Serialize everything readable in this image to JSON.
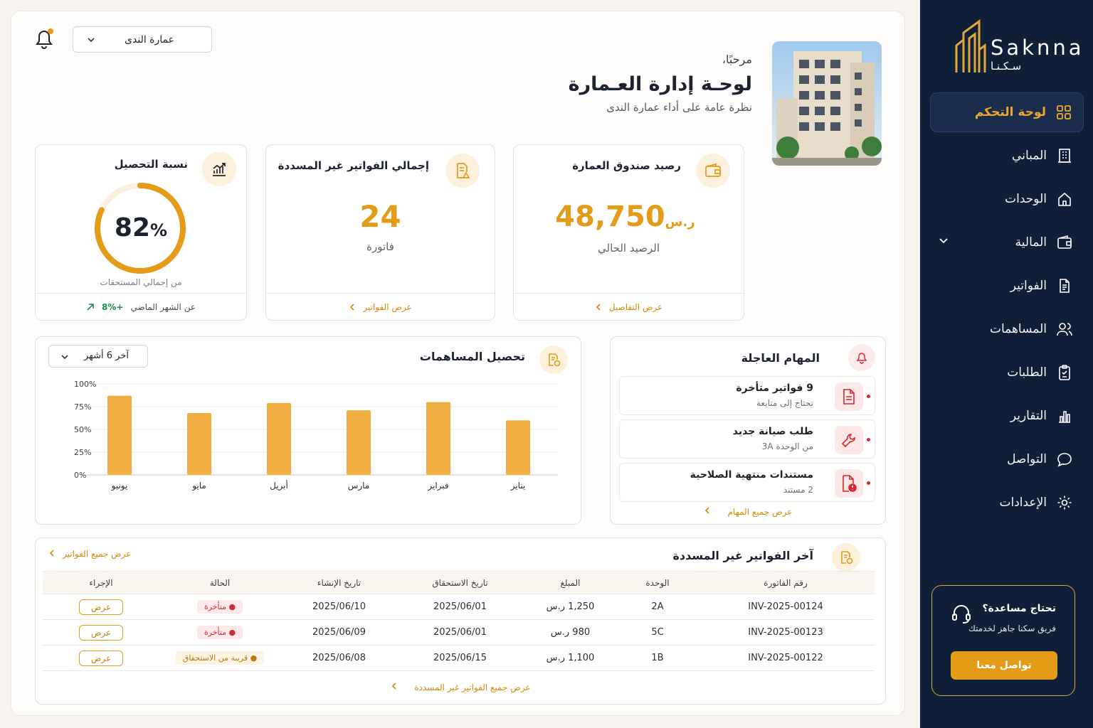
{
  "brand": {
    "latin": "Saknna",
    "arabic": "سـكـنـا"
  },
  "nav": [
    {
      "label": "لوحة التحكم",
      "icon": "grid-icon",
      "active": true
    },
    {
      "label": "المباني",
      "icon": "building-icon"
    },
    {
      "label": "الوحدات",
      "icon": "home-icon"
    },
    {
      "label": "المالية",
      "icon": "wallet-icon",
      "expandable": true
    },
    {
      "label": "الفواتير",
      "icon": "document-icon"
    },
    {
      "label": "المساهمات",
      "icon": "users-icon"
    },
    {
      "label": "الطلبات",
      "icon": "clipboard-icon"
    },
    {
      "label": "التقارير",
      "icon": "bar-chart-icon"
    },
    {
      "label": "التواصل",
      "icon": "chat-icon"
    },
    {
      "label": "الإعدادات",
      "icon": "gear-icon"
    }
  ],
  "help": {
    "title": "تحتاج مساعدة؟",
    "subtitle": "فريق سكنا جاهز لخدمتك",
    "button": "تواصل معنا"
  },
  "header": {
    "building_select": "عمارة الندى",
    "greeting": "مرحبًا،",
    "title": "لوحـة إدارة العـمارة",
    "subtitle": "نظرة عامة على أداء عمارة الندى"
  },
  "kpis": {
    "fund": {
      "title": "رصيد صندوق العمارة",
      "value": "48,750",
      "currency": "ر.س",
      "caption": "الرصيد الحالي",
      "link": "عرض التفاصيل"
    },
    "unpaid": {
      "title": "إجمالي الفواتير غير المسددة",
      "value": "24",
      "caption": "فاتورة",
      "link": "عرض الفواتير"
    },
    "collection": {
      "title": "نسبة التحصيل",
      "value": "82",
      "percent_sign": "%",
      "fraction": 0.82,
      "caption": "من إجمالي المستحقات",
      "change": "+8%",
      "change_text": "عن الشهر الماضي"
    }
  },
  "tasks": {
    "title": "المهام العاجلة",
    "items": [
      {
        "title": "9 فواتير متأخرة",
        "subtitle": "تحتاج إلى متابعة",
        "icon": "document-icon"
      },
      {
        "title": "طلب صيانة جديد",
        "subtitle": "من الوحدة 3A",
        "icon": "wrench-icon"
      },
      {
        "title": "مستندات منتهية الصلاحية",
        "subtitle": "2 مستند",
        "icon": "file-alert-icon"
      }
    ],
    "link": "عرض جميع المهام"
  },
  "chart_panel": {
    "title": "تحصيل المساهمات",
    "period": "آخر 6 أشهر"
  },
  "chart_data": {
    "type": "bar",
    "categories": [
      "يناير",
      "فبراير",
      "مارس",
      "أبريل",
      "مايو",
      "يونيو"
    ],
    "values": [
      60,
      80,
      71,
      79,
      68,
      87
    ],
    "yticks": [
      "0%",
      "25%",
      "50%",
      "75%",
      "100%"
    ],
    "ylim": [
      0,
      100
    ],
    "grid": true,
    "color": "#f0ad42"
  },
  "invoices": {
    "title": "آخر الفواتير غير المسددة",
    "top_link": "عرض جميع الفواتير",
    "columns": [
      "رقم الفاتورة",
      "الوحدة",
      "المبلغ",
      "تاريخ الاستحقاق",
      "تاريخ الإنشاء",
      "الحالة",
      "الإجراء"
    ],
    "rows": [
      {
        "id": "INV-2025-00124",
        "unit": "2A",
        "amount": "1,250",
        "currency": "ر.س",
        "due": "2025/06/01",
        "created": "2025/06/10",
        "status": "متأخرة",
        "status_type": "late",
        "action": "عرض"
      },
      {
        "id": "INV-2025-00123",
        "unit": "5C",
        "amount": "980",
        "currency": "ر.س",
        "due": "2025/06/01",
        "created": "2025/06/09",
        "status": "متأخرة",
        "status_type": "late",
        "action": "عرض"
      },
      {
        "id": "INV-2025-00122",
        "unit": "1B",
        "amount": "1,100",
        "currency": "ر.س",
        "due": "2025/06/15",
        "created": "2025/06/08",
        "status": "قريبة من الاستحقاق",
        "status_type": "near",
        "action": "عرض"
      }
    ],
    "bottom_link": "عرض جميع الفواتير غير المسددة"
  },
  "colors": {
    "accent": "#e39b18",
    "sidebar": "#0f1f38",
    "danger": "#d9252b"
  }
}
